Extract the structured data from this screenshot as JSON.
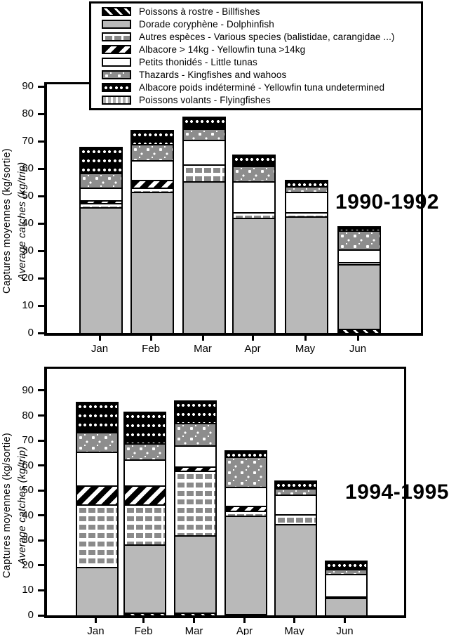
{
  "legend": {
    "items": [
      {
        "label": "Poissons à rostre - Billfishes",
        "pattern": "billfish"
      },
      {
        "label": "Dorade coryphène - Dolphinfish",
        "pattern": "dolphin"
      },
      {
        "label": "Autres espèces - Various species (balistidae, carangidae ...)",
        "pattern": "various"
      },
      {
        "label": "Albacore > 14kg - Yellowfin tuna >14kg",
        "pattern": "yf14"
      },
      {
        "label": "Petits thonidés - Little tunas",
        "pattern": "littletuna"
      },
      {
        "label": "Thazards - Kingfishes and wahoos",
        "pattern": "kingfish"
      },
      {
        "label": "Albacore poids indéterminé - Yellowfin tuna undetermined",
        "pattern": "yfund"
      },
      {
        "label": "Poissons volants - Flyingfishes",
        "pattern": "flying"
      }
    ]
  },
  "chart_data": [
    {
      "type": "bar",
      "stacked": true,
      "title": "1990-1992",
      "categories": [
        "Jan",
        "Feb",
        "Mar",
        "Apr",
        "May",
        "Jun"
      ],
      "ylabel_fr": "Captures moyennes (kg/sortie)",
      "ylabel_en": "Average catches (kg/trip)",
      "ylim": [
        0,
        90
      ],
      "yticks": [
        0,
        10,
        20,
        30,
        40,
        50,
        60,
        70,
        80,
        90
      ],
      "grid": false,
      "legend_position": "top",
      "series": [
        {
          "name": "Poissons à rostre - Billfishes",
          "pattern": "billfish",
          "values": [
            0,
            0,
            0,
            0,
            0,
            1.5
          ]
        },
        {
          "name": "Dorade coryphène - Dolphinfish",
          "pattern": "dolphin",
          "values": [
            46,
            51.5,
            55.5,
            42,
            42.5,
            23.5
          ]
        },
        {
          "name": "Autres espèces - Various species",
          "pattern": "various",
          "values": [
            1.5,
            1.5,
            6,
            2,
            1.5,
            1
          ]
        },
        {
          "name": "Albacore > 14kg - Yellowfin tuna >14kg",
          "pattern": "yf14",
          "values": [
            1,
            3,
            0,
            0,
            0,
            0
          ]
        },
        {
          "name": "Petits thonidés - Little tunas",
          "pattern": "littletuna",
          "values": [
            4.5,
            7,
            9,
            11.5,
            7.5,
            4.5
          ]
        },
        {
          "name": "Thazards - Kingfishes and wahoos",
          "pattern": "kingfish",
          "values": [
            5.5,
            6,
            4,
            5.5,
            2,
            7
          ]
        },
        {
          "name": "Albacore poids indéterminé - Yellowfin tuna undetermined",
          "pattern": "yfund",
          "values": [
            9,
            4.5,
            4,
            3.5,
            2,
            1
          ]
        },
        {
          "name": "Poissons volants - Flyingfishes",
          "pattern": "flying",
          "values": [
            0,
            0,
            0,
            0,
            0,
            0
          ]
        }
      ],
      "totals": [
        67.5,
        73.5,
        78.5,
        64.5,
        55.5,
        38.5
      ]
    },
    {
      "type": "bar",
      "stacked": true,
      "title": "1994-1995",
      "categories": [
        "Jan",
        "Feb",
        "Mar",
        "Apr",
        "May",
        "Jun"
      ],
      "ylabel_fr": "Captures moyennes (kg/sortie)",
      "ylabel_en": "Average catches (kg/trip)",
      "ylim": [
        0,
        90
      ],
      "yticks": [
        0,
        10,
        20,
        30,
        40,
        50,
        60,
        70,
        80,
        90
      ],
      "grid": false,
      "legend_position": "top",
      "series": [
        {
          "name": "Poissons à rostre - Billfishes",
          "pattern": "billfish",
          "values": [
            0,
            1,
            1,
            0.5,
            0,
            0
          ]
        },
        {
          "name": "Dorade coryphène - Dolphinfish",
          "pattern": "dolphin",
          "values": [
            19.5,
            27.5,
            31,
            39.5,
            36.5,
            7
          ]
        },
        {
          "name": "Autres espèces - Various species",
          "pattern": "various",
          "values": [
            25,
            16,
            26,
            2,
            4,
            0.5
          ]
        },
        {
          "name": "Albacore > 14kg - Yellowfin tuna >14kg",
          "pattern": "yf14",
          "values": [
            7.5,
            7.5,
            1.5,
            2,
            0,
            0
          ]
        },
        {
          "name": "Petits thonidés - Little tunas",
          "pattern": "littletuna",
          "values": [
            13.5,
            10.5,
            8.5,
            7.5,
            8,
            9
          ]
        },
        {
          "name": "Thazards - Kingfishes and wahoos",
          "pattern": "kingfish",
          "values": [
            8,
            6.5,
            9,
            12,
            2.5,
            2
          ]
        },
        {
          "name": "Albacore poids indéterminé - Yellowfin tuna undetermined",
          "pattern": "yfund",
          "values": [
            11.5,
            12,
            8.5,
            2,
            2.5,
            3
          ]
        },
        {
          "name": "Poissons volants - Flyingfishes",
          "pattern": "flying",
          "values": [
            0,
            0,
            0,
            0,
            0,
            0
          ]
        }
      ],
      "totals": [
        85,
        81,
        85.5,
        65.5,
        53.5,
        21.5
      ]
    }
  ]
}
